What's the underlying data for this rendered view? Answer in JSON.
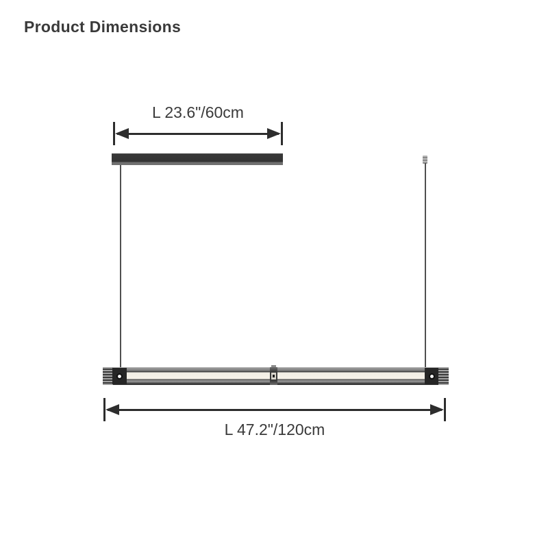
{
  "page": {
    "title": "Product Dimensions"
  },
  "dimensions": {
    "canopy": {
      "label": "L 23.6\"/60cm",
      "length_inches": 23.6,
      "length_cm": 60
    },
    "fixture": {
      "label": "L 47.2\"/120cm",
      "length_inches": 47.2,
      "length_cm": 120
    }
  },
  "diagram": {
    "parts": [
      "ceiling-canopy-bar",
      "suspension-wire-left",
      "suspension-wire-right",
      "linear-pendant-fixture"
    ],
    "icons": [
      "dimension-arrow-icon",
      "screw-icon"
    ]
  },
  "colors": {
    "background": "#ffffff",
    "text": "#3a3a3a",
    "dimension_lines": "#2d2d2d",
    "canopy": "#383838",
    "wire": "#4f4f4f",
    "fixture_frame": "#3e3e3e",
    "diffuser": "#f2eee5",
    "connector_block": "#262626"
  }
}
